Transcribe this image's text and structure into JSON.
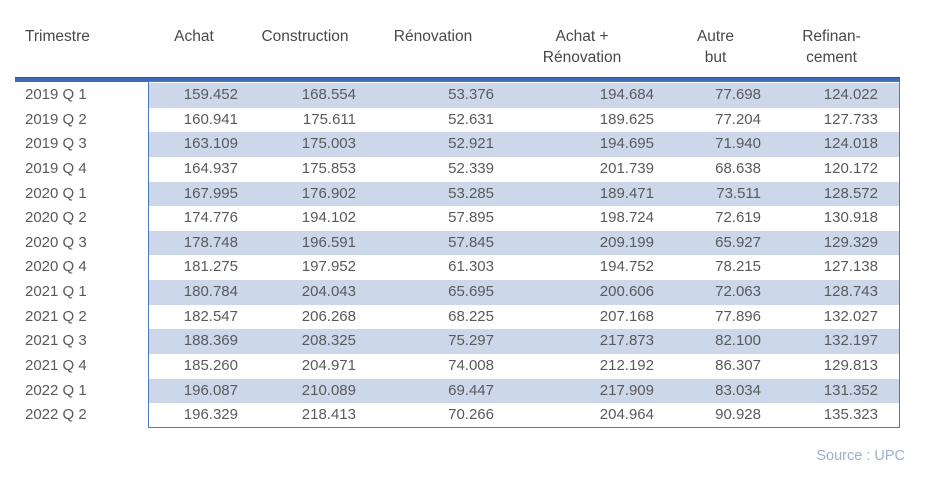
{
  "chart_data": {
    "type": "table",
    "title": "",
    "columns": [
      {
        "line1": "Trimestre",
        "line2": ""
      },
      {
        "line1": "Achat",
        "line2": ""
      },
      {
        "line1": "Construction",
        "line2": ""
      },
      {
        "line1": "Rénovation",
        "line2": ""
      },
      {
        "line1": "Achat +",
        "line2": "Rénovation"
      },
      {
        "line1": "Autre",
        "line2": "but"
      },
      {
        "line1": "Refinan-",
        "line2": "cement"
      }
    ],
    "rows": [
      {
        "label": "2019 Q 1",
        "values": [
          "159.452",
          "168.554",
          "53.376",
          "194.684",
          "77.698",
          "124.022"
        ]
      },
      {
        "label": "2019 Q 2",
        "values": [
          "160.941",
          "175.611",
          "52.631",
          "189.625",
          "77.204",
          "127.733"
        ]
      },
      {
        "label": "2019 Q 3",
        "values": [
          "163.109",
          "175.003",
          "52.921",
          "194.695",
          "71.940",
          "124.018"
        ]
      },
      {
        "label": "2019 Q 4",
        "values": [
          "164.937",
          "175.853",
          "52.339",
          "201.739",
          "68.638",
          "120.172"
        ]
      },
      {
        "label": "2020 Q 1",
        "values": [
          "167.995",
          "176.902",
          "53.285",
          "189.471",
          "73.511",
          "128.572"
        ]
      },
      {
        "label": "2020 Q 2",
        "values": [
          "174.776",
          "194.102",
          "57.895",
          "198.724",
          "72.619",
          "130.918"
        ]
      },
      {
        "label": "2020 Q 3",
        "values": [
          "178.748",
          "196.591",
          "57.845",
          "209.199",
          "65.927",
          "129.329"
        ]
      },
      {
        "label": "2020 Q 4",
        "values": [
          "181.275",
          "197.952",
          "61.303",
          "194.752",
          "78.215",
          "127.138"
        ]
      },
      {
        "label": "2021 Q 1",
        "values": [
          "180.784",
          "204.043",
          "65.695",
          "200.606",
          "72.063",
          "128.743"
        ]
      },
      {
        "label": "2021 Q 2",
        "values": [
          "182.547",
          "206.268",
          "68.225",
          "207.168",
          "77.896",
          "132.027"
        ]
      },
      {
        "label": "2021 Q 3",
        "values": [
          "188.369",
          "208.325",
          "75.297",
          "217.873",
          "82.100",
          "132.197"
        ]
      },
      {
        "label": "2021 Q 4",
        "values": [
          "185.260",
          "204.971",
          "74.008",
          "212.192",
          "86.307",
          "129.813"
        ]
      },
      {
        "label": "2022 Q 1",
        "values": [
          "196.087",
          "210.089",
          "69.447",
          "217.909",
          "83.034",
          "131.352"
        ]
      },
      {
        "label": "2022 Q 2",
        "values": [
          "196.329",
          "218.413",
          "70.266",
          "204.964",
          "90.928",
          "135.323"
        ]
      }
    ],
    "banded_row_indices": [
      0,
      2,
      4,
      6,
      8,
      10,
      12
    ]
  },
  "source_label": "Source : UPC",
  "colors": {
    "thick_rule": "#3c6db6",
    "thick_rule_edge": "#2a5695",
    "box_border": "#4a7ac4",
    "row_band": "#ccd7ea",
    "header_text": "#45484d",
    "body_text": "#595a5c",
    "source_text": "#9db1cc",
    "background": "#ffffff"
  }
}
